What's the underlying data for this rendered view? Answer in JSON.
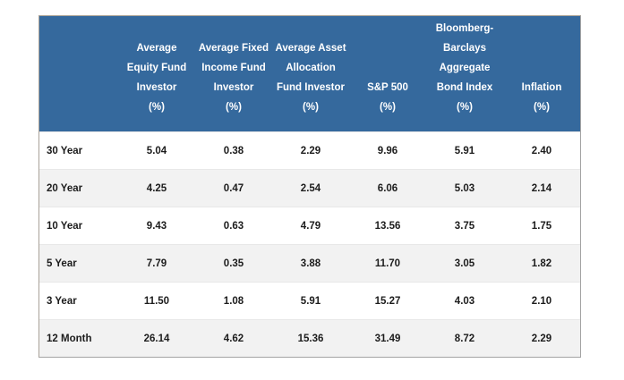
{
  "page": {
    "background_color": "#ffffff"
  },
  "table": {
    "header_bg_color": "#35699d",
    "header_text_color": "#ffffff",
    "row_alt_bg_color": "#f2f2f2",
    "body_text_color": "#1c1c1c",
    "columns": [
      {
        "lines": [
          "Average",
          "Equity Fund",
          "Investor"
        ],
        "unit": "(%)"
      },
      {
        "lines": [
          "Average Fixed",
          "Income Fund",
          "Investor"
        ],
        "unit": "(%)"
      },
      {
        "lines": [
          "Average Asset",
          "Allocation",
          "Fund Investor"
        ],
        "unit": "(%)"
      },
      {
        "lines": [
          "S&P 500"
        ],
        "unit": "(%)"
      },
      {
        "lines": [
          "Bloomberg-",
          "Barclays",
          "Aggregate",
          "Bond Index"
        ],
        "unit": "(%)"
      },
      {
        "lines": [
          "Inflation"
        ],
        "unit": "(%)"
      }
    ],
    "rows": [
      {
        "label": "30 Year",
        "values": [
          "5.04",
          "0.38",
          "2.29",
          "9.96",
          "5.91",
          "2.40"
        ]
      },
      {
        "label": "20 Year",
        "values": [
          "4.25",
          "0.47",
          "2.54",
          "6.06",
          "5.03",
          "2.14"
        ]
      },
      {
        "label": "10 Year",
        "values": [
          "9.43",
          "0.63",
          "4.79",
          "13.56",
          "3.75",
          "1.75"
        ]
      },
      {
        "label": "5 Year",
        "values": [
          "7.79",
          "0.35",
          "3.88",
          "11.70",
          "3.05",
          "1.82"
        ]
      },
      {
        "label": "3 Year",
        "values": [
          "11.50",
          "1.08",
          "5.91",
          "15.27",
          "4.03",
          "2.10"
        ]
      },
      {
        "label": "12 Month",
        "values": [
          "26.14",
          "4.62",
          "15.36",
          "31.49",
          "8.72",
          "2.29"
        ]
      }
    ]
  },
  "chart_data": {
    "type": "table",
    "title": "",
    "row_header": "",
    "columns": [
      "Average Equity Fund Investor (%)",
      "Average Fixed Income Fund Investor (%)",
      "Average Asset Allocation Fund Investor (%)",
      "S&P 500 (%)",
      "Bloomberg-Barclays Aggregate Bond Index (%)",
      "Inflation (%)"
    ],
    "rows": [
      "30 Year",
      "20 Year",
      "10 Year",
      "5 Year",
      "3 Year",
      "12 Month"
    ],
    "values": [
      [
        5.04,
        0.38,
        2.29,
        9.96,
        5.91,
        2.4
      ],
      [
        4.25,
        0.47,
        2.54,
        6.06,
        5.03,
        2.14
      ],
      [
        9.43,
        0.63,
        4.79,
        13.56,
        3.75,
        1.75
      ],
      [
        7.79,
        0.35,
        3.88,
        11.7,
        3.05,
        1.82
      ],
      [
        11.5,
        1.08,
        5.91,
        15.27,
        4.03,
        2.1
      ],
      [
        26.14,
        4.62,
        15.36,
        31.49,
        8.72,
        2.29
      ]
    ]
  }
}
